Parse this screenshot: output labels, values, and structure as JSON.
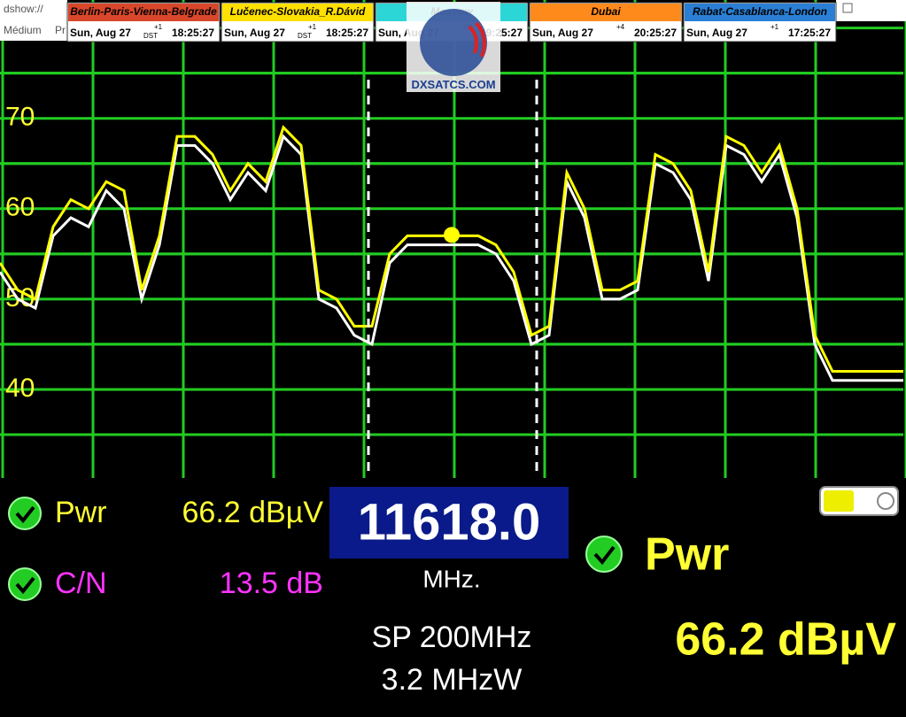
{
  "window": {
    "title": "dshow://",
    "menu": [
      "Médium",
      "Pr"
    ]
  },
  "clocks": [
    {
      "city": "Berlin-Paris-Vienna-Belgrade",
      "color": "#d9472b",
      "date": "Sun, Aug 27",
      "offset": "+1",
      "dst": "DST",
      "time": "18:25:27"
    },
    {
      "city": "Lučenec-Slovakia_R.Dávid",
      "color": "#ffe000",
      "date": "Sun, Aug 27",
      "offset": "+1",
      "dst": "DST",
      "time": "18:25:27"
    },
    {
      "city": "Moscow",
      "color": "#2dd6d6",
      "date": "Sun, Aug 27",
      "offset": "+3",
      "dst": "",
      "time": "19:25:27"
    },
    {
      "city": "Dubai",
      "color": "#ff8a1c",
      "date": "Sun, Aug 27",
      "offset": "+4",
      "dst": "",
      "time": "20:25:27"
    },
    {
      "city": "Rabat-Casablanca-London",
      "color": "#2a7fd4",
      "date": "Sun, Aug 27",
      "offset": "+1",
      "dst": "",
      "time": "17:25:27"
    }
  ],
  "logo": "DXSATCS.COM",
  "chart_data": {
    "type": "line",
    "ylim": [
      30.2,
      83.1
    ],
    "yticks": [
      40,
      50,
      60,
      70,
      80
    ],
    "grid": true,
    "series": [
      {
        "name": "live",
        "color": "#ffff00",
        "values": [
          54,
          51,
          50,
          58,
          61,
          60,
          63,
          62,
          51,
          57,
          68,
          68,
          66,
          62,
          65,
          63,
          69,
          67,
          51,
          50,
          47,
          47,
          55,
          57,
          57,
          57,
          57,
          57,
          56,
          53,
          46,
          47,
          64,
          60,
          51,
          51,
          52,
          66,
          65,
          62,
          53,
          68,
          67,
          64,
          67,
          60,
          46,
          42,
          42,
          42,
          42,
          42
        ]
      },
      {
        "name": "hold",
        "color": "#ffffff",
        "values": [
          53,
          50,
          49,
          57,
          59,
          58,
          62,
          60,
          50,
          56,
          67,
          67,
          65,
          61,
          64,
          62,
          68,
          66,
          50,
          49,
          46,
          45,
          54,
          56,
          56,
          56,
          56,
          56,
          55,
          52,
          45,
          46,
          63,
          59,
          50,
          50,
          51,
          65,
          64,
          61,
          52,
          67,
          66,
          63,
          66,
          59,
          45,
          41,
          41,
          41,
          41,
          41
        ]
      }
    ],
    "marker": 57.1
  },
  "readings": {
    "pwr_label": "Pwr",
    "pwr": "66.2 dBµV",
    "cn_label": "C/N",
    "cn": "13.5 dB",
    "frequency": "11618.0",
    "unit": "MHz.",
    "span": "SP 200MHz",
    "rbw": "3.2 MHzW",
    "big_label": "Pwr",
    "big_value": "66.2 dBµV"
  }
}
